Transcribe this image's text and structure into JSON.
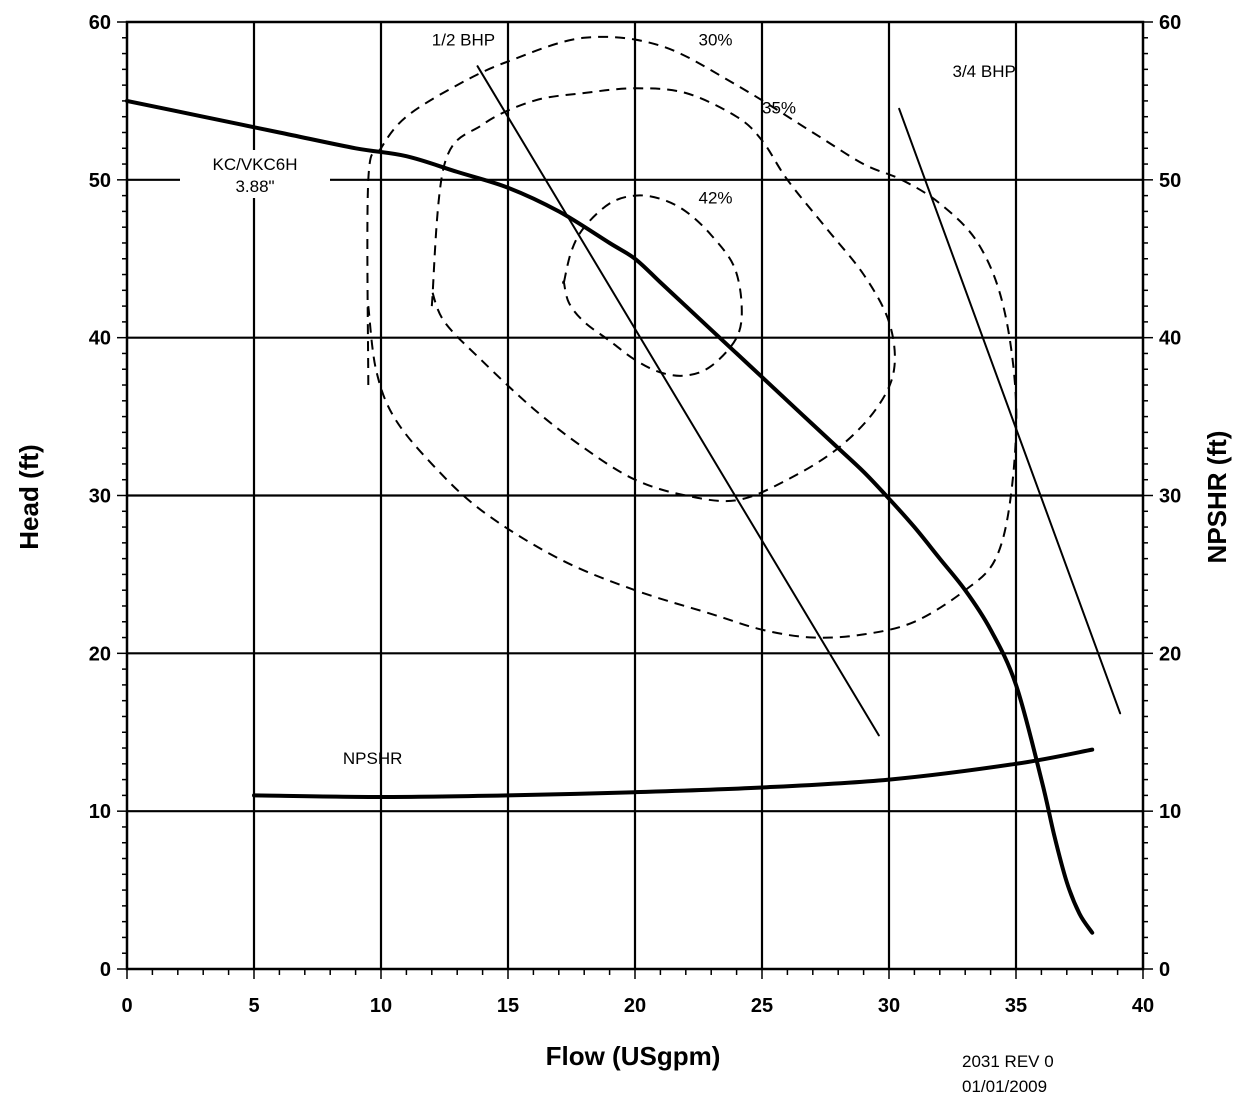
{
  "chart_data": {
    "type": "line",
    "xlabel": "Flow (USgpm)",
    "ylabel": "Head (ft)",
    "y2label": "NPSHR (ft)",
    "xlim": [
      0,
      40
    ],
    "ylim": [
      0,
      60
    ],
    "y2lim": [
      0,
      60
    ],
    "x_ticks": [
      0,
      5,
      10,
      15,
      20,
      25,
      30,
      35,
      40
    ],
    "y_ticks": [
      0,
      10,
      20,
      30,
      40,
      50,
      60
    ],
    "y2_ticks": [
      0,
      10,
      20,
      30,
      40,
      50,
      60
    ],
    "grid": true,
    "series": [
      {
        "name": "KC/VKC6H",
        "name_line2": "3.88\"",
        "style": "solid-thick",
        "x": [
          0,
          3,
          6,
          9,
          11,
          13,
          15,
          17,
          19,
          20,
          21,
          22,
          23,
          24,
          25,
          26,
          27,
          28,
          29,
          30,
          31,
          32,
          33,
          34,
          35,
          36,
          36.5,
          37,
          37.5,
          38
        ],
        "y": [
          55,
          54,
          53,
          52,
          51.5,
          50.5,
          49.5,
          48,
          46,
          45,
          43.5,
          42,
          40.5,
          39,
          37.5,
          36,
          34.5,
          33,
          31.5,
          29.8,
          28,
          26,
          24,
          21.5,
          18,
          12,
          8.5,
          5.5,
          3.5,
          2.3
        ]
      },
      {
        "name": "NPSHR",
        "style": "solid-thick",
        "x": [
          5,
          10,
          15,
          20,
          25,
          30,
          35,
          38
        ],
        "y": [
          11,
          10.9,
          11,
          11.2,
          11.5,
          12,
          13,
          13.9
        ]
      },
      {
        "name": "1/2 BHP",
        "style": "solid-thin",
        "x": [
          13.8,
          29.6
        ],
        "y": [
          57.2,
          14.8
        ]
      },
      {
        "name": "3/4 BHP",
        "style": "solid-thin",
        "x": [
          30.4,
          39.1
        ],
        "y": [
          54.5,
          16.2
        ]
      },
      {
        "name": "30%",
        "style": "dashed",
        "closed": false,
        "x": [
          9.5,
          9.5,
          10,
          11,
          13,
          15,
          18,
          21,
          24,
          27,
          29,
          30.5,
          32,
          33.5,
          34.5,
          35,
          34.8,
          34.2,
          33,
          31,
          29,
          27,
          25,
          23,
          20,
          17,
          14,
          12,
          10.5,
          9.8,
          9.5
        ],
        "y": [
          37,
          50,
          52,
          54,
          56,
          57.5,
          59,
          58.5,
          56,
          53,
          51,
          50,
          48.5,
          46,
          42,
          36,
          30,
          26,
          24,
          22,
          21.2,
          21,
          21.5,
          22.5,
          24,
          26,
          29,
          32,
          35,
          38,
          42
        ]
      },
      {
        "name": "35%",
        "style": "dashed",
        "closed": false,
        "x": [
          12,
          12.5,
          14,
          16,
          18,
          20,
          22,
          24,
          25,
          26,
          27.5,
          29,
          30,
          30.2,
          29.5,
          28,
          26,
          24,
          22,
          20,
          18,
          16,
          14,
          12.5,
          12
        ],
        "y": [
          42,
          51,
          53.5,
          55,
          55.5,
          55.8,
          55.5,
          54,
          52.5,
          50,
          47,
          44,
          41,
          38,
          35.5,
          33,
          31,
          29.7,
          30,
          31,
          33,
          35.5,
          38.5,
          41,
          43
        ]
      },
      {
        "name": "42%",
        "style": "dashed",
        "closed": true,
        "x": [
          17.2,
          17.5,
          18,
          19,
          20,
          21,
          22,
          23,
          23.9,
          24.2,
          24,
          23,
          22,
          21,
          20,
          19,
          18,
          17.4,
          17.2
        ],
        "y": [
          43.5,
          45.5,
          47,
          48.5,
          49,
          48.8,
          48,
          46.5,
          44.5,
          42,
          40,
          38.2,
          37.6,
          37.8,
          38.6,
          39.8,
          41,
          42.2,
          43.5
        ]
      }
    ],
    "annotations": [
      {
        "text": "1/2 BHP",
        "x": 12,
        "y": 58.5
      },
      {
        "text": "3/4 BHP",
        "x": 32.5,
        "y": 56.5
      },
      {
        "text": "30%",
        "x": 22.5,
        "y": 58.5
      },
      {
        "text": "35%",
        "x": 25,
        "y": 54.2
      },
      {
        "text": "42%",
        "x": 22.5,
        "y": 48.5
      },
      {
        "text": "NPSHR",
        "x": 8.5,
        "y": 13
      }
    ]
  },
  "footer": {
    "code": "2031 REV 0",
    "date": "01/01/2009"
  }
}
